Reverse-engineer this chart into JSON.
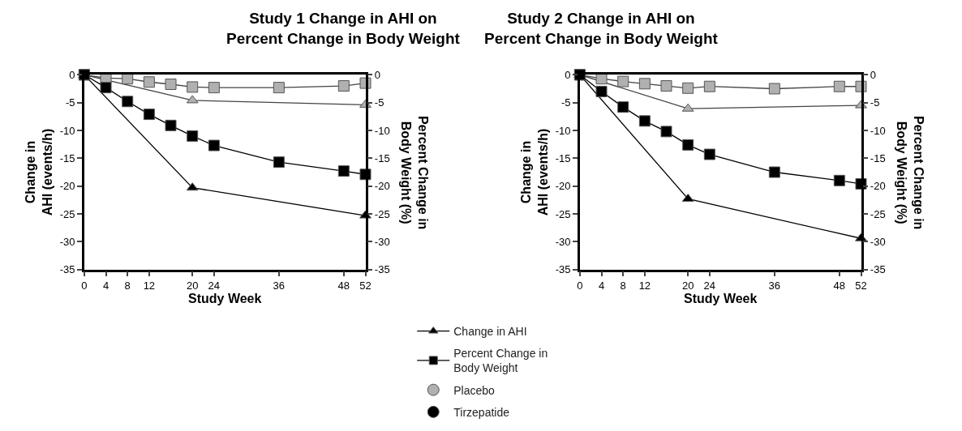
{
  "chart_data": [
    {
      "type": "line",
      "title": "Study 1 Change in AHI on\nPercent Change in Body Weight",
      "xlabel": "Study Week",
      "ylabel": "Change in\nAHI (events/h)",
      "y2label": "Percent Change in\nBody Weight (%)",
      "xlim": [
        0,
        52
      ],
      "xticks": [
        0,
        4,
        8,
        12,
        20,
        24,
        36,
        48,
        52
      ],
      "ylim": [
        -35,
        0
      ],
      "yticks": [
        -35,
        -30,
        -25,
        -20,
        -15,
        -10,
        -5,
        0
      ],
      "y2lim": [
        -35,
        0
      ],
      "y2ticks": [
        -35,
        -30,
        -25,
        -20,
        -15,
        -10,
        -5,
        0
      ],
      "line_style": "solid",
      "series": [
        {
          "color": "#b0b0b0",
          "marker": "triangle",
          "x": [
            0,
            20,
            52
          ],
          "values": [
            0,
            -4.6,
            -5.4
          ]
        },
        {
          "color": "#000000",
          "marker": "triangle",
          "x": [
            0,
            20,
            52
          ],
          "values": [
            0,
            -20.3,
            -25.3
          ]
        },
        {
          "color": "#b0b0b0",
          "marker": "square",
          "axis": "y2",
          "x": [
            0,
            4,
            8,
            12,
            16,
            20,
            24,
            36,
            48,
            52
          ],
          "values": [
            0,
            -0.6,
            -0.7,
            -1.3,
            -1.7,
            -2.2,
            -2.3,
            -2.3,
            -2.0,
            -1.5
          ]
        },
        {
          "color": "#000000",
          "marker": "square",
          "axis": "y2",
          "x": [
            0,
            4,
            8,
            12,
            16,
            20,
            24,
            36,
            48,
            52
          ],
          "values": [
            0,
            -2.3,
            -4.8,
            -7.1,
            -9.1,
            -11.0,
            -12.7,
            -15.7,
            -17.3,
            -17.9
          ]
        }
      ]
    },
    {
      "type": "line",
      "title": "Study 2 Change in AHI on\nPercent Change in Body Weight",
      "xlabel": "Study Week",
      "ylabel": "Change in\nAHI (events/h)",
      "y2label": "Percent Change in\nBody Weight (%)",
      "xlim": [
        0,
        52
      ],
      "xticks": [
        0,
        4,
        8,
        12,
        20,
        24,
        36,
        48,
        52
      ],
      "ylim": [
        -35,
        0
      ],
      "yticks": [
        -35,
        -30,
        -25,
        -20,
        -15,
        -10,
        -5,
        0
      ],
      "y2lim": [
        -35,
        0
      ],
      "y2ticks": [
        -35,
        -30,
        -25,
        -20,
        -15,
        -10,
        -5,
        0
      ],
      "line_style": "solid",
      "series": [
        {
          "color": "#b0b0b0",
          "marker": "triangle",
          "x": [
            0,
            20,
            52
          ],
          "values": [
            0,
            -6.1,
            -5.5
          ]
        },
        {
          "color": "#000000",
          "marker": "triangle",
          "x": [
            0,
            20,
            52
          ],
          "values": [
            0,
            -22.3,
            -29.4
          ]
        },
        {
          "color": "#b0b0b0",
          "marker": "square",
          "axis": "y2",
          "x": [
            0,
            4,
            8,
            12,
            16,
            20,
            24,
            36,
            48,
            52
          ],
          "values": [
            0,
            -0.7,
            -1.2,
            -1.6,
            -2.0,
            -2.4,
            -2.1,
            -2.5,
            -2.1,
            -2.1
          ]
        },
        {
          "color": "#000000",
          "marker": "square",
          "axis": "y2",
          "x": [
            0,
            4,
            8,
            12,
            16,
            20,
            24,
            36,
            48,
            52
          ],
          "values": [
            0,
            -3.0,
            -5.8,
            -8.3,
            -10.2,
            -12.6,
            -14.3,
            -17.5,
            -19.0,
            -19.6
          ]
        }
      ]
    },
    {
      "type": "other",
      "legend": "bottom",
      "series": [
        {
          "name": "Change in AHI",
          "color": "#000000",
          "marker": "triangle",
          "type": "line"
        },
        {
          "name": "Percent Change in\nBody Weight",
          "color": "#000000",
          "marker": "square",
          "type": "line"
        },
        {
          "name": "Placebo",
          "color": "#b0b0b0",
          "marker": "circle",
          "type": "scatter"
        },
        {
          "name": "Tirzepatide",
          "color": "#000000",
          "marker": "circle",
          "type": "scatter"
        }
      ]
    }
  ]
}
